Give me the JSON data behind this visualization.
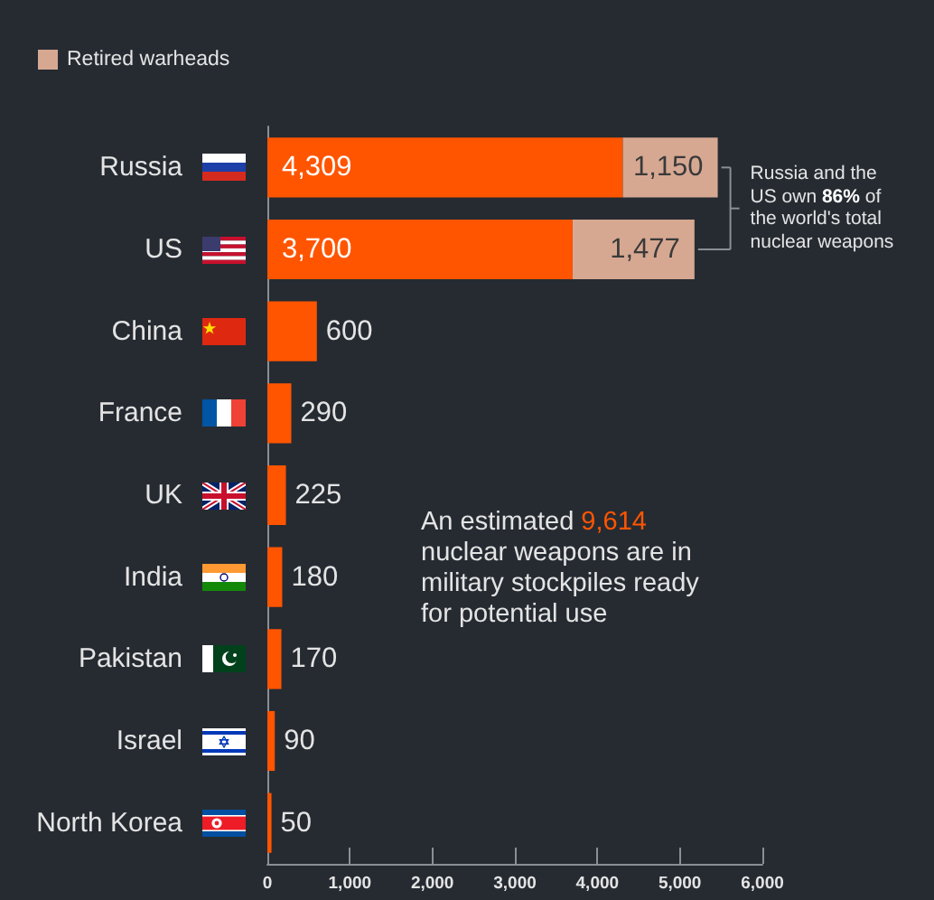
{
  "chart_data": {
    "type": "bar",
    "orientation": "horizontal",
    "stacked": true,
    "categories": [
      "Russia",
      "US",
      "China",
      "France",
      "UK",
      "India",
      "Pakistan",
      "Israel",
      "North Korea"
    ],
    "series": [
      {
        "color": "#ff5500",
        "values": [
          4309,
          3700,
          600,
          290,
          225,
          180,
          170,
          90,
          50
        ],
        "value_labels": [
          "4,309",
          "3,700",
          "600",
          "290",
          "225",
          "180",
          "170",
          "90",
          "50"
        ]
      },
      {
        "name": "Retired warheads",
        "color": "#d6a892",
        "values": [
          1150,
          1477,
          null,
          null,
          null,
          null,
          null,
          null,
          null
        ],
        "value_labels": [
          "1,150",
          "1,477",
          null,
          null,
          null,
          null,
          null,
          null,
          null
        ]
      }
    ],
    "xlim": [
      0,
      6000
    ],
    "xticks": [
      0,
      {
        "value": 1000,
        "label": "1,000"
      },
      {
        "value": 2000,
        "label": "2,000"
      },
      {
        "value": 3000,
        "label": "3,000"
      },
      {
        "value": 4000,
        "label": "4,000"
      },
      {
        "value": 5000,
        "label": "5,000"
      },
      {
        "value": 6000,
        "label": "6,000"
      }
    ],
    "legend": "top left",
    "grid": false,
    "annotations": [
      "Russia and the US own 86% of the world's total nuclear weapons",
      "An estimated 9,614 nuclear weapons are in military stockpiles ready for potential use"
    ]
  }
}
